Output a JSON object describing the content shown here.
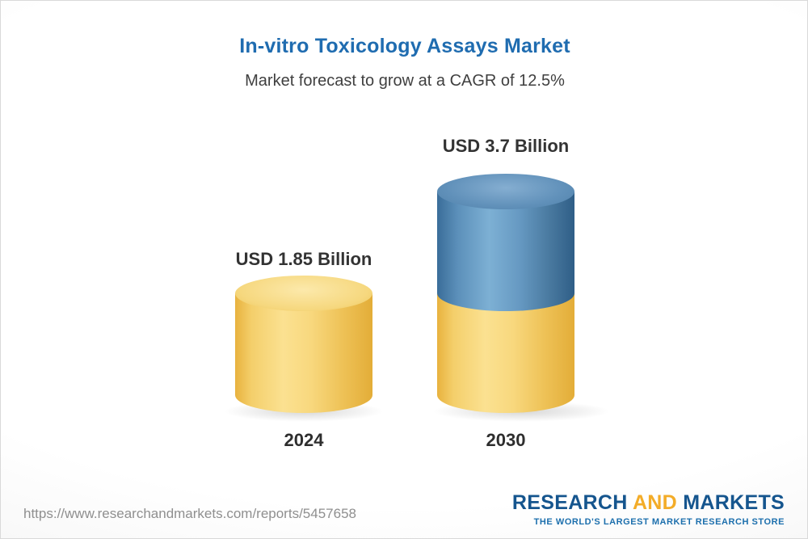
{
  "header": {
    "title": "In-vitro Toxicology Assays Market",
    "subtitle": "Market forecast to grow at a CAGR of 12.5%"
  },
  "chart_data": {
    "type": "bar",
    "categories": [
      "2024",
      "2030"
    ],
    "values": [
      1.85,
      3.7
    ],
    "value_labels": [
      "USD 1.85 Billion",
      "USD 3.7 Billion"
    ],
    "unit": "USD Billion",
    "title": "In-vitro Toxicology Assays Market",
    "subtitle": "Market forecast to grow at a CAGR of 12.5%",
    "cagr": "12.5%",
    "ylim": [
      0,
      4
    ],
    "grid": false,
    "legend": "none",
    "colors": {
      "bar_2024": "#f5cf6d",
      "bar_2030_base": "#f5cf6d",
      "bar_2030_growth": "#4d7fab",
      "title_text": "#1f6cb0",
      "label_text": "#333333"
    },
    "notes": "2030 bar is stacked: yellow base equals 2024 value, blue top is projected growth"
  },
  "footer": {
    "url": "https://www.researchandmarkets.com/reports/5457658",
    "logo": {
      "research": "RESEARCH",
      "and": "AND",
      "markets": "MARKETS",
      "tagline": "THE WORLD'S LARGEST MARKET RESEARCH STORE"
    }
  }
}
